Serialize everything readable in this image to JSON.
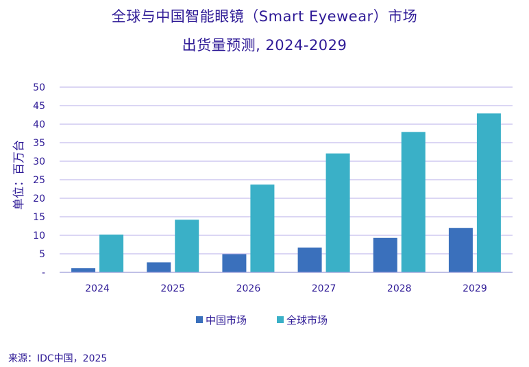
{
  "chart_data": {
    "type": "bar",
    "title_line1": "全球与中国智能眼镜（Smart Eyewear）市场",
    "title_line2": "出货量预测, 2024-2029",
    "xlabel": "",
    "ylabel": "单位：百万台",
    "categories": [
      "2024",
      "2025",
      "2026",
      "2027",
      "2028",
      "2029"
    ],
    "series": [
      {
        "name": "中国市场",
        "color": "#3a70bc",
        "values": [
          1.1,
          2.7,
          4.9,
          6.7,
          9.3,
          12.0
        ]
      },
      {
        "name": "全球市场",
        "color": "#3ab0c7",
        "values": [
          10.2,
          14.2,
          23.7,
          32.1,
          37.9,
          42.9
        ]
      }
    ],
    "ylim": [
      0,
      50
    ],
    "yticks": [
      "-",
      "5",
      "10",
      "15",
      "20",
      "25",
      "30",
      "35",
      "40",
      "45",
      "50"
    ],
    "grid": true,
    "legend_position": "bottom-center",
    "gridline_color": "#b7aee8",
    "text_color": "#2e1a96"
  },
  "source_text": "来源：IDC中国，2025"
}
